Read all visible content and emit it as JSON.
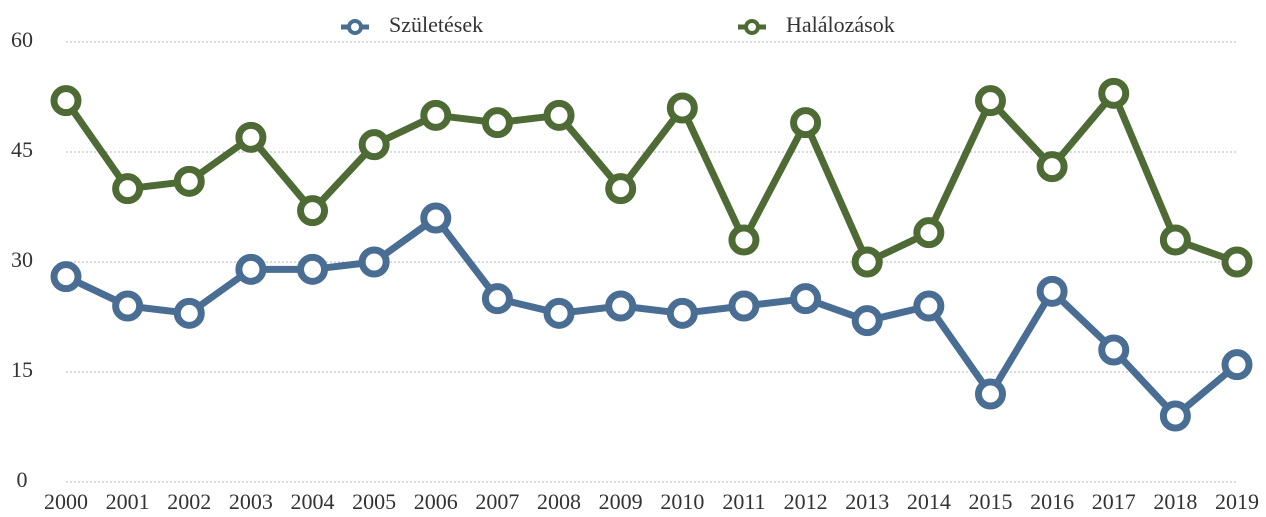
{
  "chart_data": {
    "type": "line",
    "categories": [
      "2000",
      "2001",
      "2002",
      "2003",
      "2004",
      "2005",
      "2006",
      "2007",
      "2008",
      "2009",
      "2010",
      "2011",
      "2012",
      "2013",
      "2014",
      "2015",
      "2016",
      "2017",
      "2018",
      "2019"
    ],
    "series": [
      {
        "name": "Születések",
        "color": "#4a6d94",
        "values": [
          28,
          24,
          23,
          29,
          29,
          30,
          36,
          25,
          23,
          24,
          23,
          24,
          25,
          22,
          24,
          12,
          26,
          18,
          9,
          16
        ]
      },
      {
        "name": "Halálozások",
        "color": "#4e6b35",
        "values": [
          52,
          40,
          41,
          47,
          37,
          46,
          50,
          49,
          50,
          40,
          51,
          33,
          49,
          30,
          34,
          52,
          43,
          53,
          33,
          30
        ]
      }
    ],
    "ylim": [
      0,
      60
    ],
    "yticks": [
      0,
      15,
      30,
      45,
      60
    ],
    "grid": true,
    "legend": "top"
  }
}
